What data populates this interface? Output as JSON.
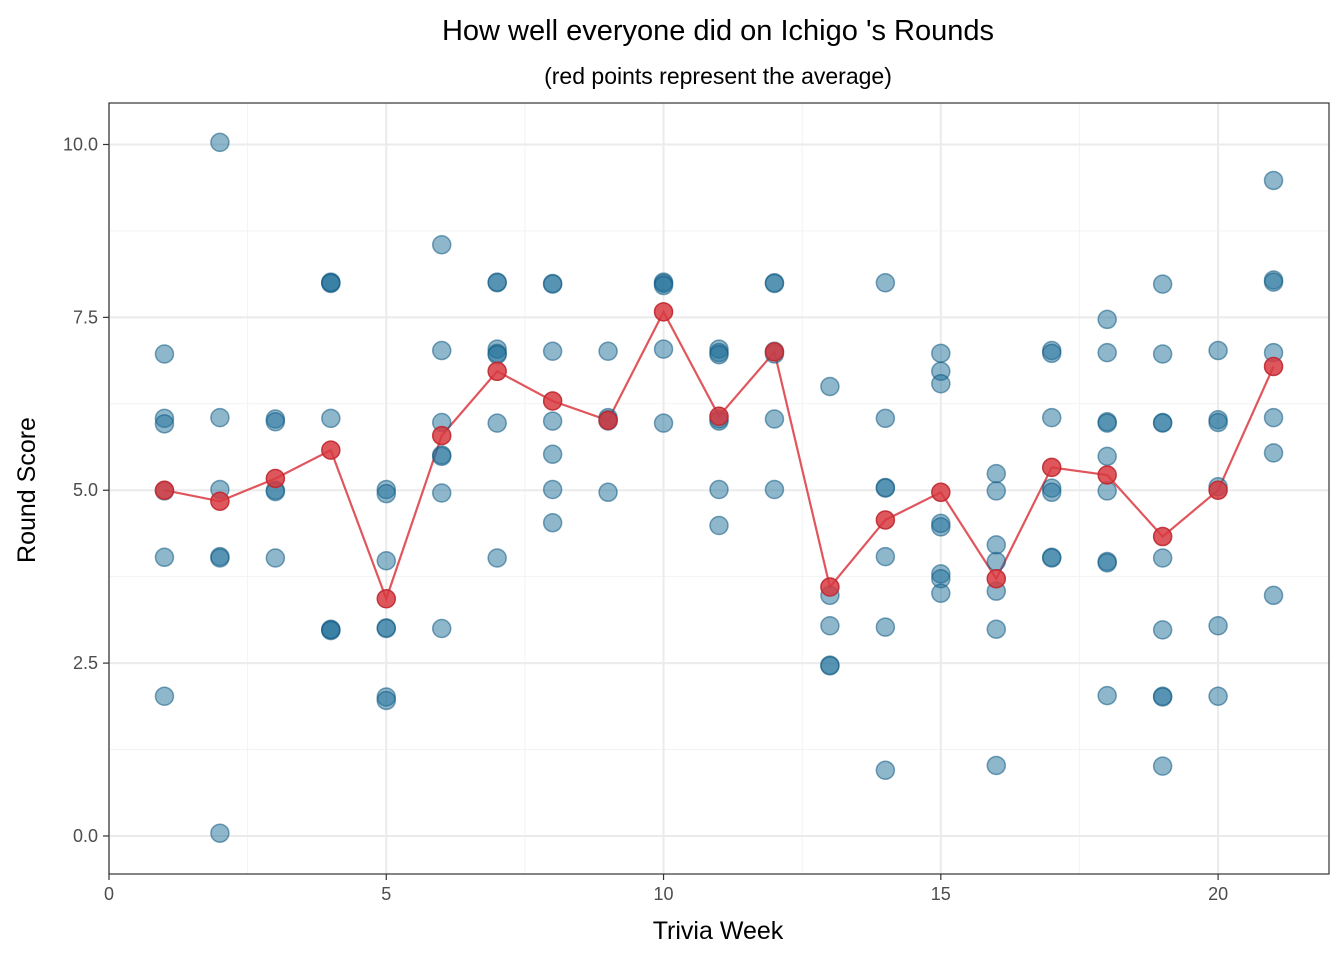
{
  "chart_data": {
    "type": "scatter",
    "title": "How well everyone did on Ichigo 's Rounds",
    "subtitle": "(red points represent the average)",
    "xlabel": "Trivia Week",
    "ylabel": "Round Score",
    "xlim": [
      0,
      22
    ],
    "ylim": [
      -0.55,
      10.6
    ],
    "x_ticks": [
      0,
      5,
      10,
      15,
      20
    ],
    "y_ticks": [
      0.0,
      2.5,
      5.0,
      7.5,
      10.0
    ],
    "x_tick_labels": [
      "0",
      "5",
      "10",
      "15",
      "20"
    ],
    "y_tick_labels": [
      "0.0",
      "2.5",
      "5.0",
      "7.5",
      "10.0"
    ],
    "grid": true,
    "colors": {
      "points": "#206f99",
      "average": "#d73a40"
    },
    "series": [
      {
        "values": [
          [
            1,
            6.97
          ],
          [
            1,
            6.04
          ],
          [
            1,
            5.96
          ],
          [
            1,
            4.99
          ],
          [
            1,
            4.03
          ],
          [
            1,
            2.02
          ],
          [
            2,
            10.03
          ],
          [
            2,
            6.05
          ],
          [
            2,
            5.01
          ],
          [
            2,
            4.04
          ],
          [
            2,
            4.02
          ],
          [
            2,
            0.04
          ],
          [
            3,
            6.03
          ],
          [
            3,
            5.99
          ],
          [
            3,
            5.0
          ],
          [
            3,
            4.98
          ],
          [
            3,
            4.02
          ],
          [
            4,
            8.01
          ],
          [
            4,
            7.99
          ],
          [
            4,
            8.0
          ],
          [
            4,
            6.04
          ],
          [
            4,
            2.99
          ],
          [
            4,
            2.97
          ],
          [
            4,
            2.98
          ],
          [
            5,
            5.01
          ],
          [
            5,
            4.95
          ],
          [
            5,
            3.98
          ],
          [
            5,
            3.01
          ],
          [
            5,
            3.0
          ],
          [
            5,
            2.01
          ],
          [
            5,
            1.96
          ],
          [
            6,
            8.55
          ],
          [
            6,
            7.02
          ],
          [
            6,
            5.98
          ],
          [
            6,
            5.51
          ],
          [
            6,
            5.49
          ],
          [
            6,
            4.96
          ],
          [
            6,
            3.0
          ],
          [
            7,
            8.0
          ],
          [
            7,
            8.01
          ],
          [
            7,
            7.04
          ],
          [
            7,
            6.98
          ],
          [
            7,
            6.96
          ],
          [
            7,
            5.97
          ],
          [
            7,
            4.02
          ],
          [
            8,
            7.99
          ],
          [
            8,
            7.98
          ],
          [
            8,
            7.01
          ],
          [
            8,
            6.0
          ],
          [
            8,
            5.52
          ],
          [
            8,
            5.01
          ],
          [
            8,
            4.53
          ],
          [
            9,
            7.01
          ],
          [
            9,
            6.05
          ],
          [
            9,
            6.02
          ],
          [
            9,
            6.0
          ],
          [
            9,
            4.97
          ],
          [
            10,
            8.01
          ],
          [
            10,
            7.99
          ],
          [
            10,
            7.96
          ],
          [
            10,
            7.04
          ],
          [
            10,
            5.97
          ],
          [
            11,
            7.04
          ],
          [
            11,
            6.99
          ],
          [
            11,
            6.96
          ],
          [
            11,
            6.03
          ],
          [
            11,
            6.0
          ],
          [
            11,
            5.01
          ],
          [
            11,
            4.49
          ],
          [
            12,
            8.0
          ],
          [
            12,
            7.99
          ],
          [
            12,
            7.01
          ],
          [
            12,
            6.97
          ],
          [
            12,
            6.03
          ],
          [
            12,
            5.01
          ],
          [
            13,
            6.5
          ],
          [
            13,
            3.48
          ],
          [
            13,
            3.04
          ],
          [
            13,
            2.47
          ],
          [
            13,
            2.46
          ],
          [
            14,
            8.0
          ],
          [
            14,
            6.04
          ],
          [
            14,
            5.04
          ],
          [
            14,
            5.03
          ],
          [
            14,
            4.04
          ],
          [
            14,
            3.02
          ],
          [
            14,
            0.95
          ],
          [
            15,
            6.98
          ],
          [
            15,
            6.72
          ],
          [
            15,
            6.54
          ],
          [
            15,
            4.52
          ],
          [
            15,
            4.47
          ],
          [
            15,
            3.79
          ],
          [
            15,
            3.72
          ],
          [
            15,
            3.51
          ],
          [
            16,
            5.24
          ],
          [
            16,
            4.99
          ],
          [
            16,
            4.21
          ],
          [
            16,
            3.97
          ],
          [
            16,
            3.54
          ],
          [
            16,
            2.99
          ],
          [
            16,
            1.02
          ],
          [
            17,
            7.02
          ],
          [
            17,
            6.98
          ],
          [
            17,
            6.05
          ],
          [
            17,
            5.03
          ],
          [
            17,
            4.97
          ],
          [
            17,
            4.03
          ],
          [
            17,
            4.02
          ],
          [
            18,
            7.47
          ],
          [
            18,
            6.99
          ],
          [
            18,
            5.99
          ],
          [
            18,
            5.97
          ],
          [
            18,
            5.49
          ],
          [
            18,
            4.99
          ],
          [
            18,
            3.97
          ],
          [
            18,
            3.95
          ],
          [
            18,
            2.03
          ],
          [
            19,
            7.98
          ],
          [
            19,
            6.97
          ],
          [
            19,
            5.98
          ],
          [
            19,
            5.97
          ],
          [
            19,
            4.02
          ],
          [
            19,
            2.98
          ],
          [
            19,
            2.02
          ],
          [
            19,
            2.01
          ],
          [
            19,
            1.01
          ],
          [
            20,
            7.02
          ],
          [
            20,
            6.02
          ],
          [
            20,
            5.98
          ],
          [
            20,
            5.05
          ],
          [
            20,
            3.04
          ],
          [
            20,
            2.02
          ],
          [
            21,
            9.48
          ],
          [
            21,
            8.04
          ],
          [
            21,
            8.01
          ],
          [
            21,
            6.99
          ],
          [
            21,
            6.05
          ],
          [
            21,
            5.54
          ],
          [
            21,
            3.48
          ]
        ]
      },
      {
        "values": [
          [
            1,
            5.0
          ],
          [
            2,
            4.84
          ],
          [
            3,
            5.17
          ],
          [
            4,
            5.58
          ],
          [
            5,
            3.43
          ],
          [
            6,
            5.79
          ],
          [
            7,
            6.72
          ],
          [
            8,
            6.29
          ],
          [
            9,
            6.01
          ],
          [
            10,
            7.58
          ],
          [
            11,
            6.07
          ],
          [
            12,
            7.0
          ],
          [
            13,
            3.6
          ],
          [
            14,
            4.57
          ],
          [
            15,
            4.97
          ],
          [
            16,
            3.72
          ],
          [
            17,
            5.33
          ],
          [
            18,
            5.22
          ],
          [
            19,
            4.33
          ],
          [
            20,
            5.0
          ],
          [
            21,
            6.79
          ]
        ]
      }
    ]
  }
}
